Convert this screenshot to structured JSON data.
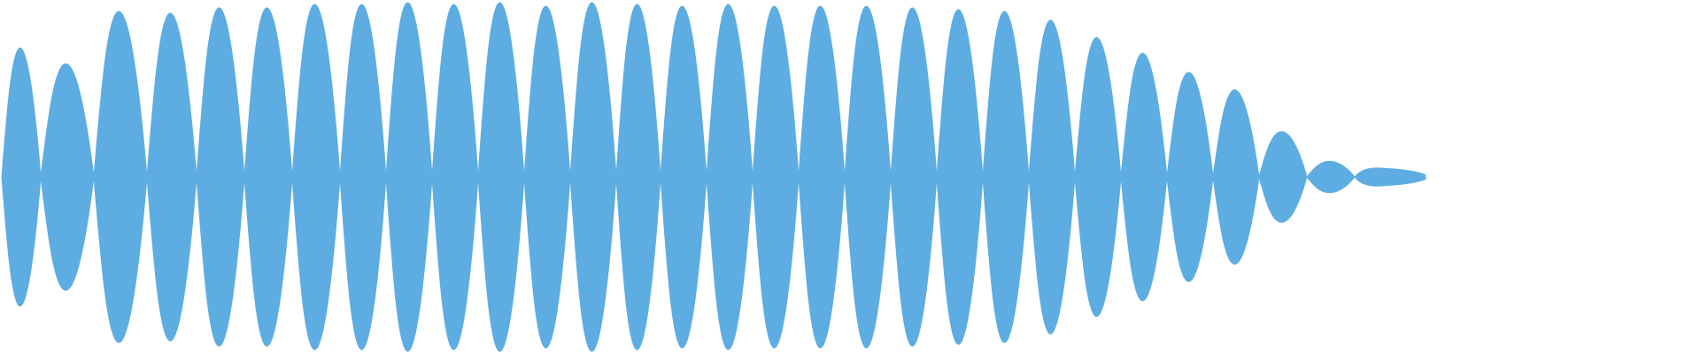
{
  "waveform": {
    "fill_color": "#5DADE2",
    "background_color": "#FFFFFF",
    "segment_count": 30,
    "levels": [
      0.74,
      0.65,
      0.95,
      0.94,
      0.97,
      0.97,
      0.99,
      0.99,
      1.0,
      0.99,
      1.0,
      0.98,
      1.0,
      0.99,
      0.98,
      0.99,
      0.98,
      0.98,
      0.98,
      0.97,
      0.96,
      0.95,
      0.9,
      0.8,
      0.71,
      0.6,
      0.5,
      0.26,
      0.09,
      0.05
    ]
  }
}
